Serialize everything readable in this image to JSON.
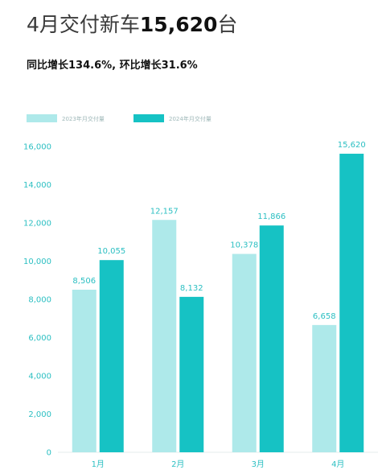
{
  "headline": {
    "prefix": "4月交付新车",
    "number": "15,620",
    "suffix": "台"
  },
  "subheadline": "同比增长134.6%, 环比增长31.6%",
  "chart_data": {
    "type": "bar",
    "categories": [
      "1月",
      "2月",
      "3月",
      "4月"
    ],
    "series": [
      {
        "name": "2023年月交付量",
        "values": [
          8506,
          12157,
          10378,
          6658
        ],
        "labels": [
          "8,506",
          "12,157",
          "10,378",
          "6,658"
        ],
        "color": "#aee9ea"
      },
      {
        "name": "2024年月交付量",
        "values": [
          10055,
          8132,
          11866,
          15620
        ],
        "labels": [
          "10,055",
          "8,132",
          "11,866",
          "15,620"
        ],
        "color": "#16c2c4"
      }
    ],
    "yticks": [
      "0",
      "2,000",
      "4,000",
      "6,000",
      "8,000",
      "10,000",
      "12,000",
      "14,000",
      "16,000"
    ],
    "ylim": [
      0,
      16000
    ],
    "legend": "top-left",
    "grid": false
  }
}
